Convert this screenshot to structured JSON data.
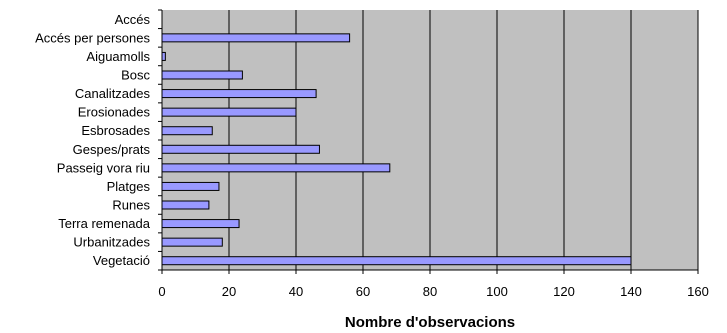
{
  "chart_data": {
    "type": "bar",
    "orientation": "horizontal",
    "title": "",
    "xlabel": "Nombre d'observacions",
    "ylabel": "",
    "categories": [
      "Accés",
      "Accés per persones",
      "Aiguamolls",
      "Bosc",
      "Canalitzades",
      "Erosionades",
      "Esbrosades",
      "Gespes/prats",
      "Passeig vora riu",
      "Platges",
      "Runes",
      "Terra remenada",
      "Urbanitzades",
      "Vegetació"
    ],
    "values": [
      0,
      56,
      1,
      24,
      46,
      40,
      15,
      47,
      68,
      17,
      14,
      23,
      18,
      140
    ],
    "xlim": [
      0,
      160
    ],
    "xticks": [
      0,
      20,
      40,
      60,
      80,
      100,
      120,
      140,
      160
    ],
    "grid": "vertical",
    "legend": "none",
    "colors": {
      "plot_background": "#c0c0c0",
      "bar_fill": "#9999ff",
      "bar_stroke": "#000000",
      "grid": "#000000"
    }
  }
}
